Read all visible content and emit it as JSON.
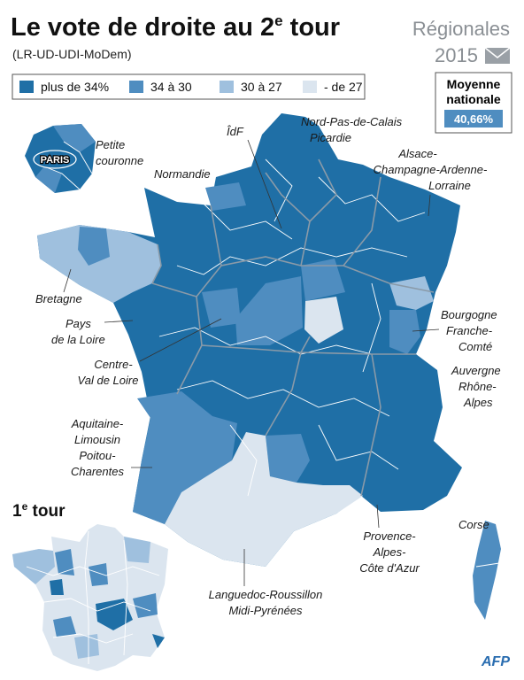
{
  "header": {
    "title": "Le vote de droite au 2",
    "title_sup": "e",
    "title_end": " tour",
    "subtitle": "(LR-UD-UDI-MoDem)",
    "election": "Régionales",
    "year": "2015"
  },
  "legend": [
    {
      "label": "plus de 34%",
      "color": "#1f6fa6"
    },
    {
      "label": "34 à 30",
      "color": "#4f8dc0"
    },
    {
      "label": "30 à 27",
      "color": "#9fc0de"
    },
    {
      "label": "- de 27",
      "color": "#dbe5ef"
    }
  ],
  "national_average": {
    "label": [
      "Moyenne",
      "nationale"
    ],
    "value": "40,66%"
  },
  "paris_inset": {
    "paris": "PARIS",
    "label": [
      "Petite",
      "couronne"
    ]
  },
  "regions": [
    {
      "lines": [
        "ÎdF"
      ]
    },
    {
      "lines": [
        "Nord-Pas-de-Calais",
        "Picardie"
      ]
    },
    {
      "lines": [
        "Alsace-",
        "Champagne-Ardenne-",
        "Lorraine"
      ]
    },
    {
      "lines": [
        "Normandie"
      ]
    },
    {
      "lines": [
        "Bretagne"
      ]
    },
    {
      "lines": [
        "Pays",
        "de la Loire"
      ]
    },
    {
      "lines": [
        "Centre-",
        "Val de Loire"
      ]
    },
    {
      "lines": [
        "Bourgogne",
        "Franche-",
        "Comté"
      ]
    },
    {
      "lines": [
        "Auvergne",
        "Rhône-",
        "Alpes"
      ]
    },
    {
      "lines": [
        "Aquitaine-",
        "Limousin",
        "Poitou-",
        "Charentes"
      ]
    },
    {
      "lines": [
        "Languedoc-Roussillon",
        "Midi-Pyrénées"
      ]
    },
    {
      "lines": [
        "Provence-",
        "Alpes-",
        "Côte d'Azur"
      ]
    },
    {
      "lines": [
        "Corse"
      ]
    }
  ],
  "first_round": {
    "label": "1",
    "sup": "e",
    "end": " tour"
  },
  "source": "AFP"
}
